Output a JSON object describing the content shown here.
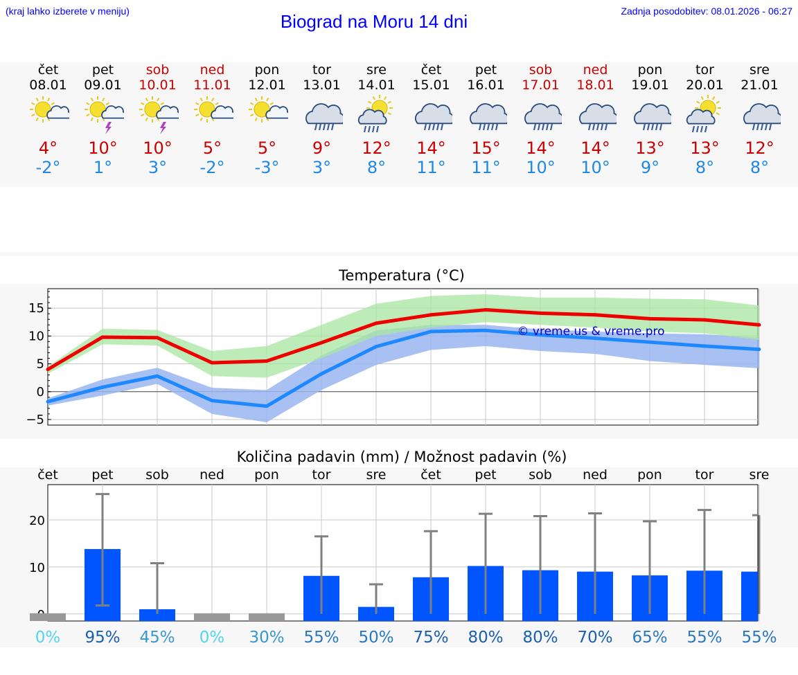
{
  "header": {
    "hint": "(kraj lahko izberete v meniju)",
    "title": "Biograd na Moru 14 dni",
    "updated": "Zadnja posodobitev: 08.01.2026 - 06:27"
  },
  "days": [
    {
      "name": "čet",
      "date": "08.01",
      "weekend": false,
      "icon": "partly-sunny-icon",
      "tmax": "4°",
      "tmin": "-2°"
    },
    {
      "name": "pet",
      "date": "09.01",
      "weekend": false,
      "icon": "sun-cloud-thunder-icon",
      "tmax": "10°",
      "tmin": "1°"
    },
    {
      "name": "sob",
      "date": "10.01",
      "weekend": true,
      "icon": "sun-cloud-thunder-icon",
      "tmax": "10°",
      "tmin": "3°"
    },
    {
      "name": "ned",
      "date": "11.01",
      "weekend": true,
      "icon": "partly-sunny-icon",
      "tmax": "5°",
      "tmin": "-2°"
    },
    {
      "name": "pon",
      "date": "12.01",
      "weekend": false,
      "icon": "partly-sunny-icon",
      "tmax": "5°",
      "tmin": "-3°"
    },
    {
      "name": "tor",
      "date": "13.01",
      "weekend": false,
      "icon": "rain-cloud-icon",
      "tmax": "9°",
      "tmin": "3°"
    },
    {
      "name": "sre",
      "date": "14.01",
      "weekend": false,
      "icon": "sun-rain-icon",
      "tmax": "12°",
      "tmin": "8°"
    },
    {
      "name": "čet",
      "date": "15.01",
      "weekend": false,
      "icon": "rain-cloud-icon",
      "tmax": "14°",
      "tmin": "11°"
    },
    {
      "name": "pet",
      "date": "16.01",
      "weekend": false,
      "icon": "rain-cloud-icon",
      "tmax": "15°",
      "tmin": "11°"
    },
    {
      "name": "sob",
      "date": "17.01",
      "weekend": true,
      "icon": "rain-cloud-icon",
      "tmax": "14°",
      "tmin": "10°"
    },
    {
      "name": "ned",
      "date": "18.01",
      "weekend": true,
      "icon": "rain-cloud-icon",
      "tmax": "14°",
      "tmin": "10°"
    },
    {
      "name": "pon",
      "date": "19.01",
      "weekend": false,
      "icon": "rain-cloud-icon",
      "tmax": "13°",
      "tmin": "9°"
    },
    {
      "name": "tor",
      "date": "20.01",
      "weekend": false,
      "icon": "sun-rain-icon",
      "tmax": "13°",
      "tmin": "8°"
    },
    {
      "name": "sre",
      "date": "21.01",
      "weekend": false,
      "icon": "rain-cloud-icon",
      "tmax": "12°",
      "tmin": "8°"
    }
  ],
  "colors": {
    "max_line": "#ee0000",
    "min_line": "#1e88ff",
    "max_band": "#a8e6a0",
    "min_band": "#9ab6f0",
    "bar": "#0055ff",
    "whisker": "#808080",
    "watermark": "#0000cc"
  },
  "chart_data": [
    {
      "type": "line",
      "title": "Temperatura (°C)",
      "watermark": "© vreme.us & vreme.pro",
      "ylim": [
        -6,
        18.5
      ],
      "yticks": [
        "15",
        "10",
        "5",
        "0",
        "−5"
      ],
      "ytick_values": [
        15,
        10,
        5,
        0,
        -5
      ],
      "x": [
        0,
        1,
        2,
        3,
        4,
        5,
        6,
        7,
        8,
        9,
        10,
        11,
        12,
        13
      ],
      "series": [
        {
          "name": "max",
          "values": [
            4,
            9.8,
            9.7,
            5.2,
            5.5,
            8.8,
            12.3,
            13.8,
            14.7,
            14.1,
            13.8,
            13.1,
            12.9,
            12
          ]
        },
        {
          "name": "min",
          "values": [
            -1.8,
            0.8,
            2.8,
            -1.6,
            -2.6,
            3.2,
            8.1,
            10.8,
            11,
            10.2,
            9.6,
            8.9,
            8.2,
            7.6
          ]
        }
      ],
      "max_range": {
        "low": [
          3.2,
          8.5,
          8.3,
          2.8,
          2.5,
          6.0,
          10.0,
          11.5,
          12.5,
          12.0,
          11.5,
          10.8,
          10.5,
          9.3
        ],
        "high": [
          4.5,
          11.3,
          11.1,
          7.3,
          8.2,
          12.0,
          15.8,
          17.2,
          17.5,
          16.9,
          16.9,
          16.7,
          16.6,
          15.5
        ]
      },
      "min_range": {
        "low": [
          -2.5,
          -0.7,
          1.4,
          -4.0,
          -5.5,
          0.3,
          4.8,
          7.5,
          8.2,
          7.3,
          6.8,
          5.5,
          4.8,
          4.2
        ],
        "high": [
          -1.2,
          2.2,
          4.3,
          0.7,
          0.3,
          6.5,
          11.0,
          12.0,
          12.0,
          11.2,
          10.8,
          10.5,
          10.3,
          9.7
        ]
      }
    },
    {
      "type": "bar",
      "title": "Količina padavin (mm) / Možnost padavin (%)",
      "categories": [
        "čet",
        "pet",
        "sob",
        "ned",
        "pon",
        "tor",
        "sre",
        "čet",
        "pet",
        "sob",
        "ned",
        "pon",
        "tor",
        "sre"
      ],
      "ylim": [
        -1.5,
        27.5
      ],
      "yticks": [
        "20",
        "10",
        "0"
      ],
      "ytick_values": [
        20,
        10,
        0
      ],
      "values": [
        0,
        13.8,
        1.0,
        0,
        0,
        8.1,
        1.5,
        7.8,
        10.2,
        9.3,
        9.0,
        8.2,
        9.2,
        9.0
      ],
      "err_low": [
        null,
        1.8,
        0,
        null,
        null,
        0,
        0,
        0,
        0,
        0,
        0,
        0,
        0,
        0
      ],
      "err_high": [
        null,
        25.5,
        10.8,
        null,
        null,
        16.5,
        6.3,
        17.6,
        21.3,
        20.8,
        21.4,
        19.7,
        22.1,
        21.0
      ],
      "probabilities": [
        "0%",
        "95%",
        "45%",
        "0%",
        "30%",
        "55%",
        "50%",
        "75%",
        "80%",
        "80%",
        "70%",
        "65%",
        "55%",
        "55%"
      ],
      "prob_colors": [
        "#55d4ee",
        "#1a5fb0",
        "#3a98d0",
        "#55d4ee",
        "#3a98d0",
        "#2a79c0",
        "#2a79c0",
        "#1a5fb0",
        "#1a5fb0",
        "#1a5fb0",
        "#1a5fb0",
        "#2a79c0",
        "#2a79c0",
        "#2a79c0"
      ]
    }
  ]
}
